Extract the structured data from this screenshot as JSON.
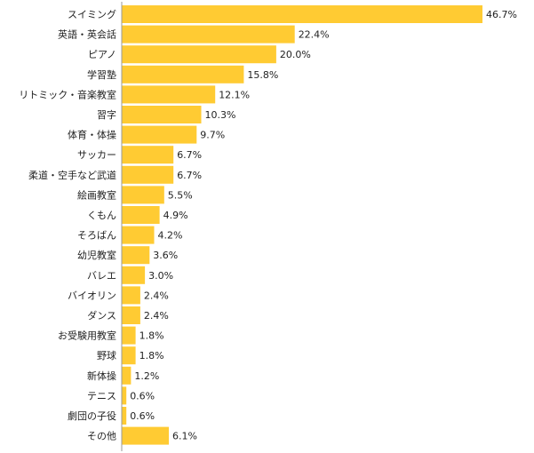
{
  "chart_data": {
    "type": "bar",
    "orientation": "horizontal",
    "bar_color": "#FFCB33",
    "axis_color": "#9a9a9a",
    "xlim": [
      0,
      50
    ],
    "categories": [
      "スイミング",
      "英語・英会話",
      "ピアノ",
      "学習塾",
      "リトミック・音楽教室",
      "習字",
      "体育・体操",
      "サッカー",
      "柔道・空手など武道",
      "絵画教室",
      "くもん",
      "そろばん",
      "幼児教室",
      "バレエ",
      "バイオリン",
      "ダンス",
      "お受験用教室",
      "野球",
      "新体操",
      "テニス",
      "劇団の子役",
      "その他"
    ],
    "values": [
      46.7,
      22.4,
      20.0,
      15.8,
      12.1,
      10.3,
      9.7,
      6.7,
      6.7,
      5.5,
      4.9,
      4.2,
      3.6,
      3.0,
      2.4,
      2.4,
      1.8,
      1.8,
      1.2,
      0.6,
      0.6,
      6.1
    ],
    "value_labels": [
      "46.7%",
      "22.4%",
      "20.0%",
      "15.8%",
      "12.1%",
      "10.3%",
      "9.7%",
      "6.7%",
      "6.7%",
      "5.5%",
      "4.9%",
      "4.2%",
      "3.6%",
      "3.0%",
      "2.4%",
      "2.4%",
      "1.8%",
      "1.8%",
      "1.2%",
      "0.6%",
      "0.6%",
      "6.1%"
    ]
  }
}
